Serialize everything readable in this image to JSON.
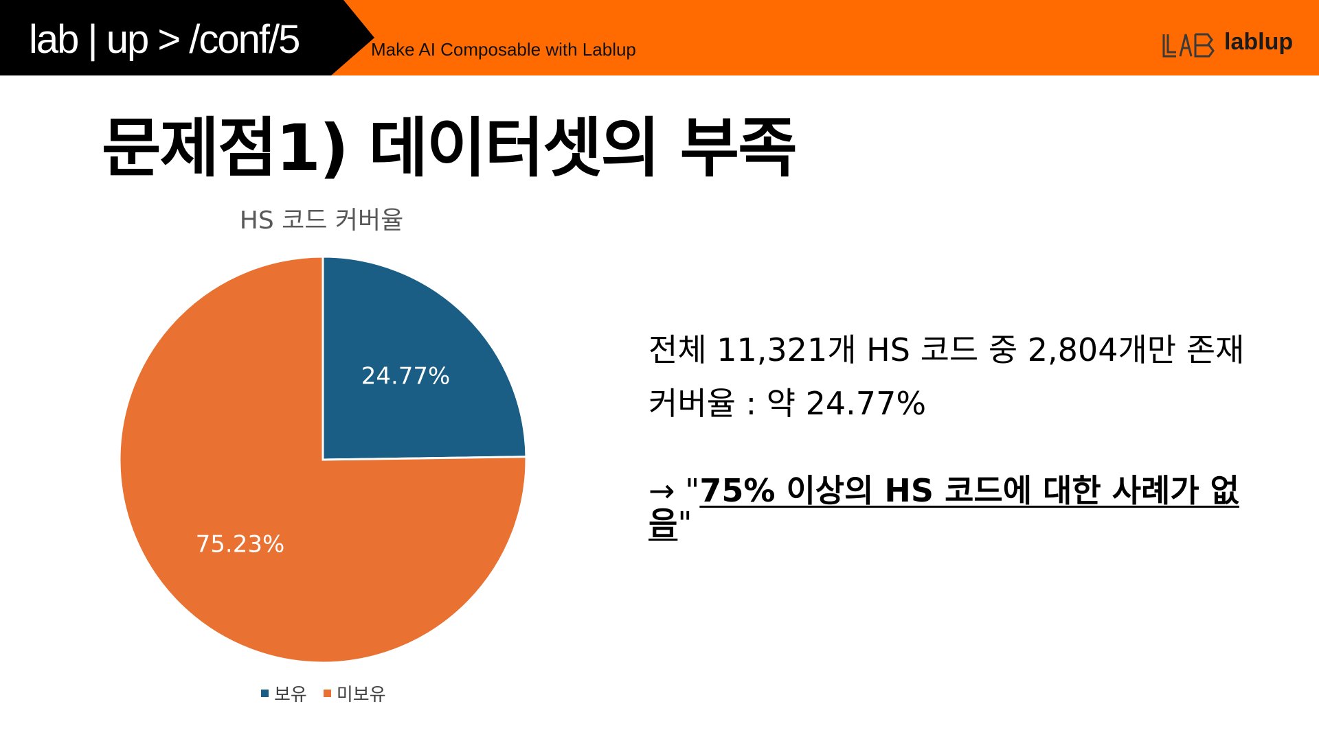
{
  "header": {
    "brand": "lab | up > /conf/5",
    "tagline": "Make AI Composable with Lablup",
    "logo_text": "lablup",
    "logo_icon": "lablup-logo-icon"
  },
  "slide": {
    "title": "문제점1) 데이터셋의 부족"
  },
  "info": {
    "line1": "전체 11,321개 HS 코드 중 2,804개만 존재",
    "line2": "커버율 : 약 24.77%",
    "conclusion_arrow": "→ ",
    "conclusion_open_quote": "\"",
    "conclusion_text": "75% 이상의 HS 코드에 대한 사례가 없음",
    "conclusion_close_quote": "\""
  },
  "colors": {
    "header_orange": "#ff6b00",
    "series_owned": "#1a5e85",
    "series_not_owned": "#e97132"
  },
  "chart_data": {
    "type": "pie",
    "title": "HS 코드 커버율",
    "categories": [
      "보유",
      "미보유"
    ],
    "values": [
      24.77,
      75.23
    ],
    "data_labels": [
      "24.77%",
      "75.23%"
    ],
    "colors": [
      "#1a5e85",
      "#e97132"
    ],
    "legend_position": "bottom"
  }
}
